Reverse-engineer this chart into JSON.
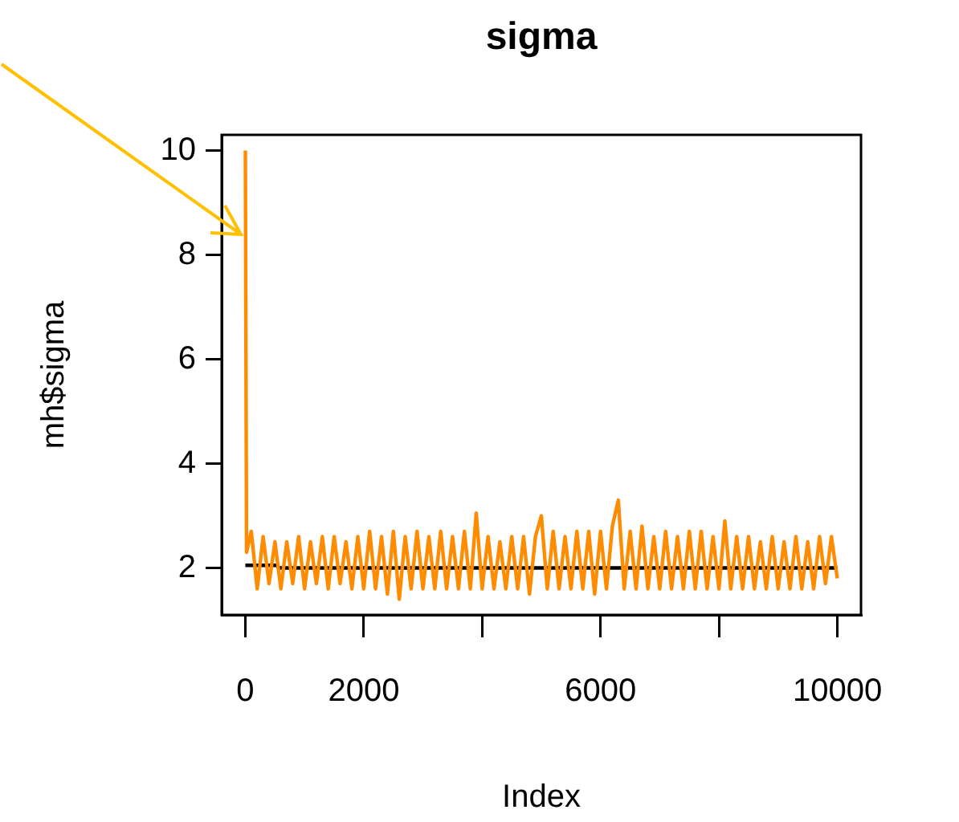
{
  "chart_data": {
    "type": "line",
    "title": "sigma",
    "xlabel": "Index",
    "ylabel": "mh$sigma",
    "marker": "none",
    "xlim": [
      -400,
      10400
    ],
    "ylim": [
      1.1,
      10.3
    ],
    "xticks": [
      0,
      2000,
      {
        "value": 4000,
        "label": null
      },
      6000,
      {
        "value": 8000,
        "label": null
      },
      10000
    ],
    "yticks": [
      2,
      4,
      6,
      8,
      10
    ],
    "series": [
      {
        "type": "line",
        "color": "#ff8c00",
        "x": [
          0,
          20,
          100,
          200,
          300,
          400,
          500,
          600,
          700,
          800,
          900,
          1000,
          1100,
          1200,
          1300,
          1400,
          1500,
          1600,
          1700,
          1800,
          1900,
          2000,
          2100,
          2200,
          2300,
          2400,
          2500,
          2600,
          2700,
          2800,
          2900,
          3000,
          3100,
          3200,
          3300,
          3400,
          3500,
          3600,
          3700,
          3800,
          3900,
          4000,
          4100,
          4200,
          4300,
          4400,
          4500,
          4600,
          4700,
          4800,
          4900,
          5000,
          5100,
          5200,
          5300,
          5400,
          5500,
          5600,
          5700,
          5800,
          5900,
          6000,
          6100,
          6200,
          6300,
          6400,
          6500,
          6600,
          6700,
          6800,
          6900,
          7000,
          7100,
          7200,
          7300,
          7400,
          7500,
          7600,
          7700,
          7800,
          7900,
          8000,
          8100,
          8200,
          8300,
          8400,
          8500,
          8600,
          8700,
          8800,
          8900,
          9000,
          9100,
          9200,
          9300,
          9400,
          9500,
          9600,
          9700,
          9800,
          9900,
          10000
        ],
        "values": [
          10,
          2.3,
          2.7,
          1.6,
          2.6,
          1.7,
          2.5,
          1.6,
          2.5,
          1.7,
          2.6,
          1.6,
          2.5,
          1.7,
          2.6,
          1.6,
          2.6,
          1.7,
          2.5,
          1.6,
          2.6,
          1.6,
          2.7,
          1.6,
          2.6,
          1.5,
          2.7,
          1.4,
          2.6,
          1.6,
          2.7,
          1.6,
          2.6,
          1.6,
          2.7,
          1.6,
          2.6,
          1.6,
          2.7,
          1.6,
          3.05,
          1.6,
          2.6,
          1.6,
          2.5,
          1.6,
          2.6,
          1.6,
          2.6,
          1.5,
          2.6,
          3.0,
          1.6,
          2.7,
          1.6,
          2.6,
          1.6,
          2.7,
          1.6,
          2.7,
          1.5,
          2.7,
          1.6,
          2.8,
          3.3,
          1.6,
          2.7,
          1.6,
          2.8,
          1.6,
          2.6,
          1.6,
          2.7,
          1.6,
          2.6,
          1.6,
          2.7,
          1.6,
          2.7,
          1.6,
          2.6,
          1.6,
          2.9,
          1.6,
          2.6,
          1.6,
          2.6,
          1.6,
          2.5,
          1.6,
          2.6,
          1.6,
          2.5,
          1.6,
          2.6,
          1.6,
          2.5,
          1.6,
          2.6,
          1.7,
          2.6,
          1.8
        ]
      },
      {
        "type": "line",
        "color": "#000000",
        "x": [
          0,
          540,
          560,
          10000
        ],
        "values": [
          2.05,
          2.05,
          2.0,
          2.0
        ]
      }
    ]
  }
}
